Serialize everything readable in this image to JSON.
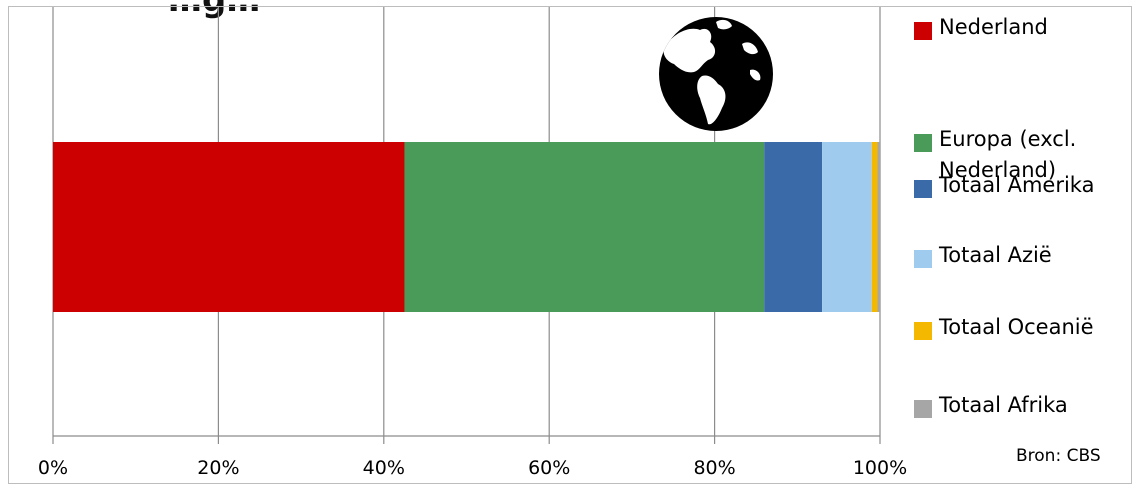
{
  "chart_data": {
    "type": "bar",
    "orientation": "horizontal",
    "stacked": true,
    "title": "…g…",
    "xlabel": "",
    "ylabel": "",
    "xlim": [
      0,
      100
    ],
    "x_tick_labels": [
      "0%",
      "20%",
      "40%",
      "60%",
      "80%",
      "100%"
    ],
    "grid": true,
    "legend_position": "right",
    "series": [
      {
        "name": "Nederland",
        "values": [
          42.5
        ],
        "color": "#cc0000"
      },
      {
        "name": "Europa (excl. Nederland)",
        "values": [
          43.5
        ],
        "color": "#4a9a5a"
      },
      {
        "name": "Totaal Amerika",
        "values": [
          7.0
        ],
        "color": "#3a6aa8"
      },
      {
        "name": "Totaal Azië",
        "values": [
          6.0
        ],
        "color": "#9ecbee"
      },
      {
        "name": "Totaal Oceanië",
        "values": [
          0.7
        ],
        "color": "#f5b800"
      },
      {
        "name": "Totaal Afrika",
        "values": [
          0.3
        ],
        "color": "#a6a6a6"
      }
    ],
    "source": "Bron: CBS"
  },
  "decorations": {
    "globe_icon": "globe-americas-icon"
  }
}
